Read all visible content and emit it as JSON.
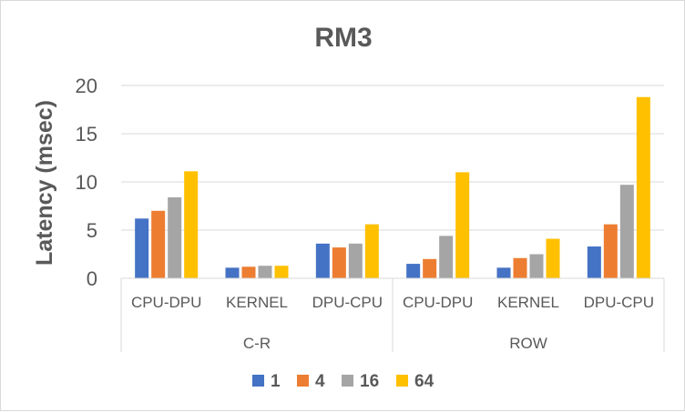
{
  "chart_data": {
    "type": "bar",
    "title": "RM3",
    "xlabel": "",
    "ylabel": "Latency (msec)",
    "ylim": [
      0,
      20
    ],
    "yticks": [
      0,
      5,
      10,
      15,
      20
    ],
    "grid": true,
    "legend_position": "bottom",
    "groups": [
      {
        "label": "C-R",
        "categories": [
          "CPU-DPU",
          "KERNEL",
          "DPU-CPU"
        ]
      },
      {
        "label": "ROW",
        "categories": [
          "CPU-DPU",
          "KERNEL",
          "DPU-CPU"
        ]
      }
    ],
    "categories": [
      "CPU-DPU",
      "KERNEL",
      "DPU-CPU",
      "CPU-DPU",
      "KERNEL",
      "DPU-CPU"
    ],
    "series": [
      {
        "name": "1",
        "color": "#4472c4",
        "values": [
          6.2,
          1.1,
          3.6,
          1.5,
          1.1,
          3.3
        ]
      },
      {
        "name": "4",
        "color": "#ed7d31",
        "values": [
          7.0,
          1.2,
          3.2,
          2.0,
          2.1,
          5.6
        ]
      },
      {
        "name": "16",
        "color": "#a5a5a5",
        "values": [
          8.4,
          1.3,
          3.6,
          4.4,
          2.5,
          9.7
        ]
      },
      {
        "name": "64",
        "color": "#ffc000",
        "values": [
          11.1,
          1.3,
          5.6,
          11.0,
          4.1,
          18.8
        ]
      }
    ]
  }
}
